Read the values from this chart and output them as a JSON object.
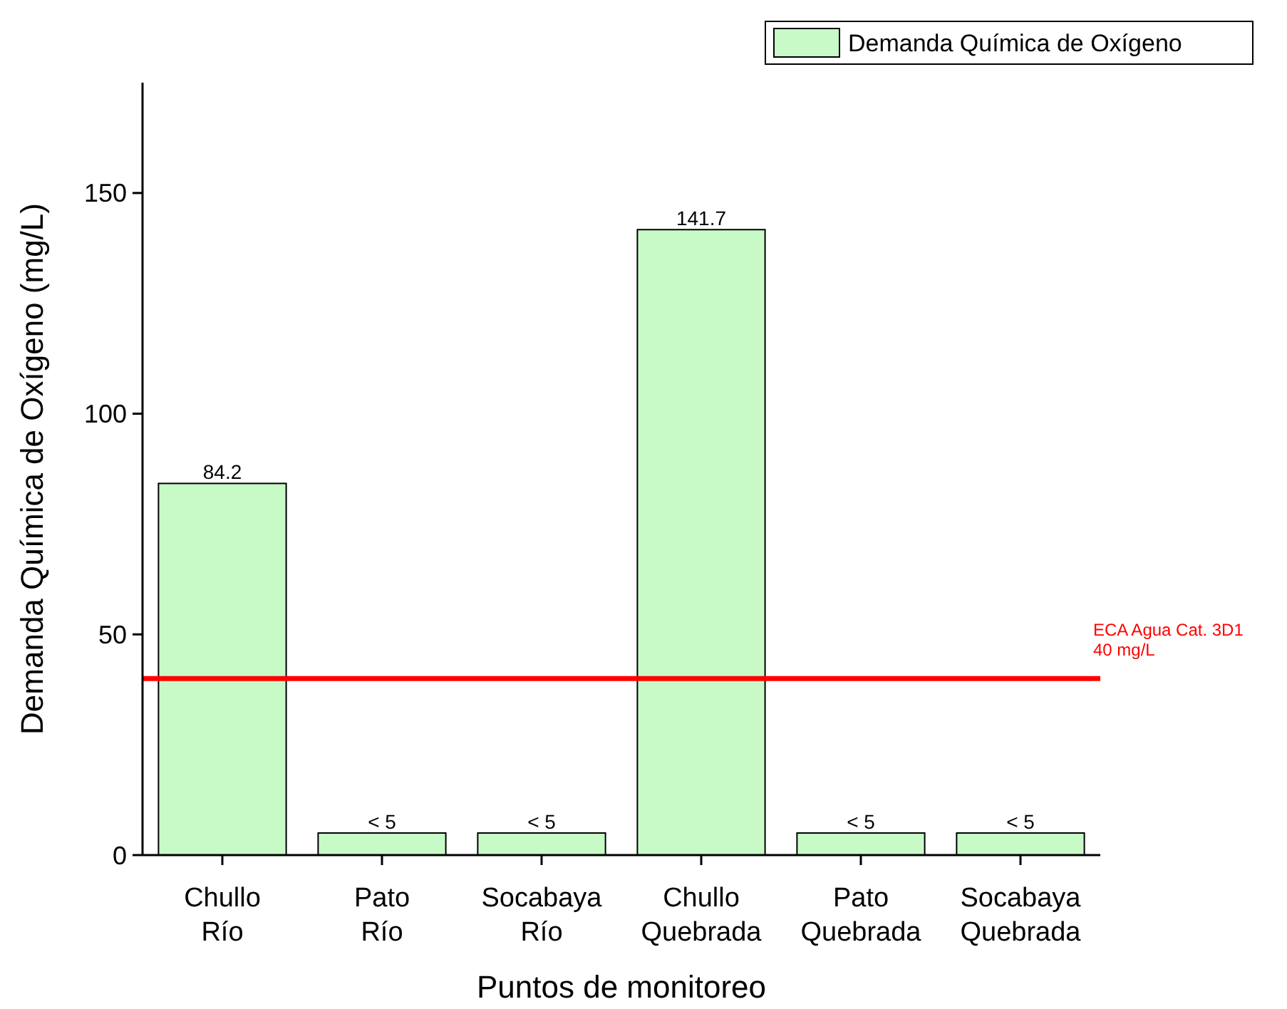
{
  "chart_data": {
    "type": "bar",
    "xlabel": "Puntos de monitoreo",
    "ylabel": "Demanda Química de Oxígeno (mg/L)",
    "categories": [
      "Chullo\nRío",
      "Pato\nRío",
      "Socabaya\nRío",
      "Chullo\nQuebrada",
      "Pato\nQuebrada",
      "Socabaya\nQuebrada"
    ],
    "series": [
      {
        "name": "Demanda Química de Oxígeno",
        "color": "#c8fac8",
        "values": [
          84.2,
          5,
          5,
          141.7,
          5,
          5
        ],
        "value_labels": [
          "84.2",
          "< 5",
          "< 5",
          "141.7",
          "< 5",
          "< 5"
        ]
      }
    ],
    "ylim": [
      0,
      175
    ],
    "yticks": [
      0,
      50,
      100,
      150
    ],
    "grid": false,
    "legend": "top right",
    "ref_lines": [
      {
        "axis": "y",
        "value": 40,
        "label": "ECA Agua Cat. 3D1\n40 mg/L",
        "color": "#ff0000"
      }
    ]
  }
}
